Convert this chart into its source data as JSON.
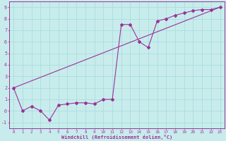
{
  "xlabel": "Windchill (Refroidissement éolien,°C)",
  "bg_color": "#c8ecec",
  "line_color": "#993399",
  "grid_color": "#aadddd",
  "xlim": [
    -0.5,
    23.5
  ],
  "ylim": [
    -1.5,
    9.5
  ],
  "xticks": [
    0,
    1,
    2,
    3,
    4,
    5,
    6,
    7,
    8,
    9,
    10,
    11,
    12,
    13,
    14,
    15,
    16,
    17,
    18,
    19,
    20,
    21,
    22,
    23
  ],
  "yticks": [
    -1,
    0,
    1,
    2,
    3,
    4,
    5,
    6,
    7,
    8,
    9
  ],
  "line1_x": [
    0,
    1,
    2,
    3,
    4,
    5,
    6,
    7,
    8,
    9,
    10,
    11,
    12,
    13,
    14,
    15,
    16,
    17,
    18,
    19,
    20,
    21,
    22,
    23
  ],
  "line1_y": [
    2.0,
    0.0,
    0.4,
    0.0,
    -0.8,
    0.5,
    0.6,
    0.7,
    0.7,
    0.6,
    1.0,
    1.0,
    7.5,
    7.5,
    6.0,
    5.5,
    7.8,
    8.0,
    8.3,
    8.5,
    8.7,
    8.8,
    8.8,
    9.0
  ],
  "line2_x": [
    0,
    23
  ],
  "line2_y": [
    2.0,
    9.0
  ]
}
